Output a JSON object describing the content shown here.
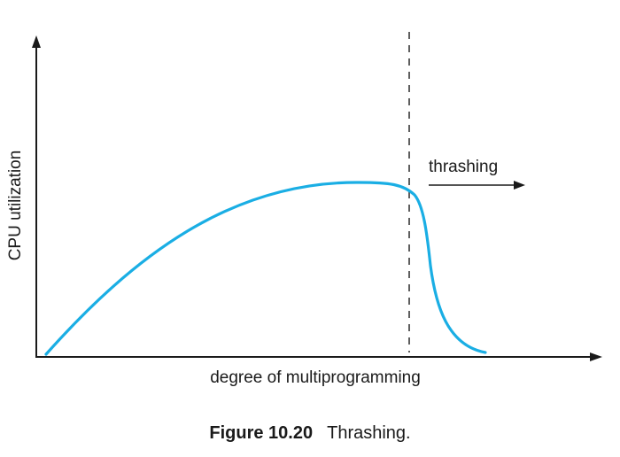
{
  "figure": {
    "x_axis_label": "degree of multiprogramming",
    "y_axis_label": "CPU utilization",
    "annotation": "thrashing",
    "caption_number": "Figure 10.20",
    "caption_text": "Thrashing."
  },
  "colors": {
    "curve": "#1aaee4",
    "axis": "#1a1a1a"
  }
}
